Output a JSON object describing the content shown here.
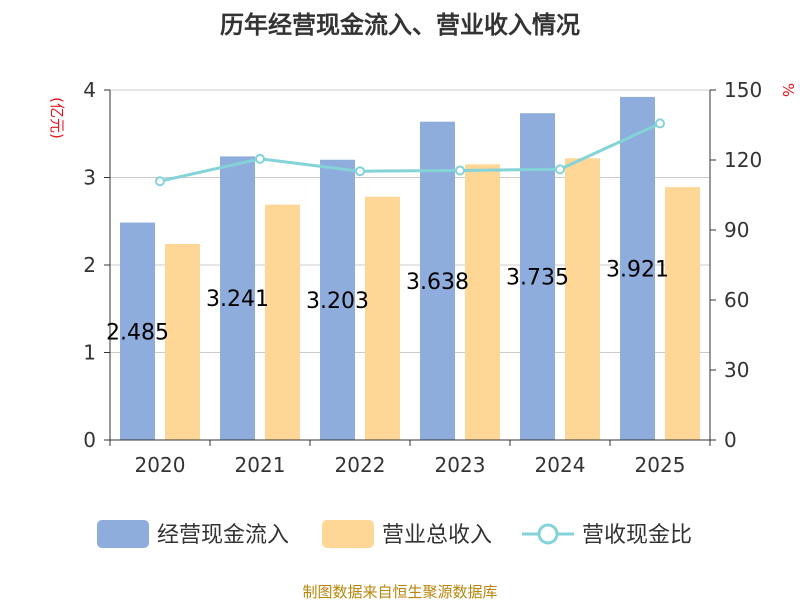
{
  "chart_data": {
    "type": "bar",
    "title": "历年经营现金流入、营业收入情况",
    "categories": [
      "2020",
      "2021",
      "2022",
      "2023",
      "2024",
      "2025"
    ],
    "y_left": {
      "unit": "(亿元)",
      "ylim": [
        0,
        4
      ],
      "ticks": [
        0,
        1,
        2,
        3,
        4
      ]
    },
    "y_right": {
      "unit": "%",
      "ylim": [
        0,
        150
      ],
      "ticks": [
        0,
        30,
        60,
        90,
        120,
        150
      ]
    },
    "series": [
      {
        "name": "经营现金流入",
        "type": "bar",
        "axis": "left",
        "color": "#8eacdc",
        "values": [
          2.485,
          3.241,
          3.203,
          3.638,
          3.735,
          3.921
        ],
        "labels": [
          "2.485",
          "3.241",
          "3.203",
          "3.638",
          "3.735",
          "3.921"
        ]
      },
      {
        "name": "营业总收入",
        "type": "bar",
        "axis": "left",
        "color": "#fed797",
        "values": [
          2.24,
          2.69,
          2.78,
          3.15,
          3.22,
          2.89
        ]
      },
      {
        "name": "营收现金比",
        "type": "line",
        "axis": "right",
        "color": "#83d3d8",
        "values": [
          110.9,
          120.5,
          115.2,
          115.5,
          116.0,
          135.7
        ]
      }
    ],
    "grid": true,
    "legend": "bottom"
  },
  "footer": {
    "source": "制图数据来自恒生聚源数据库"
  }
}
